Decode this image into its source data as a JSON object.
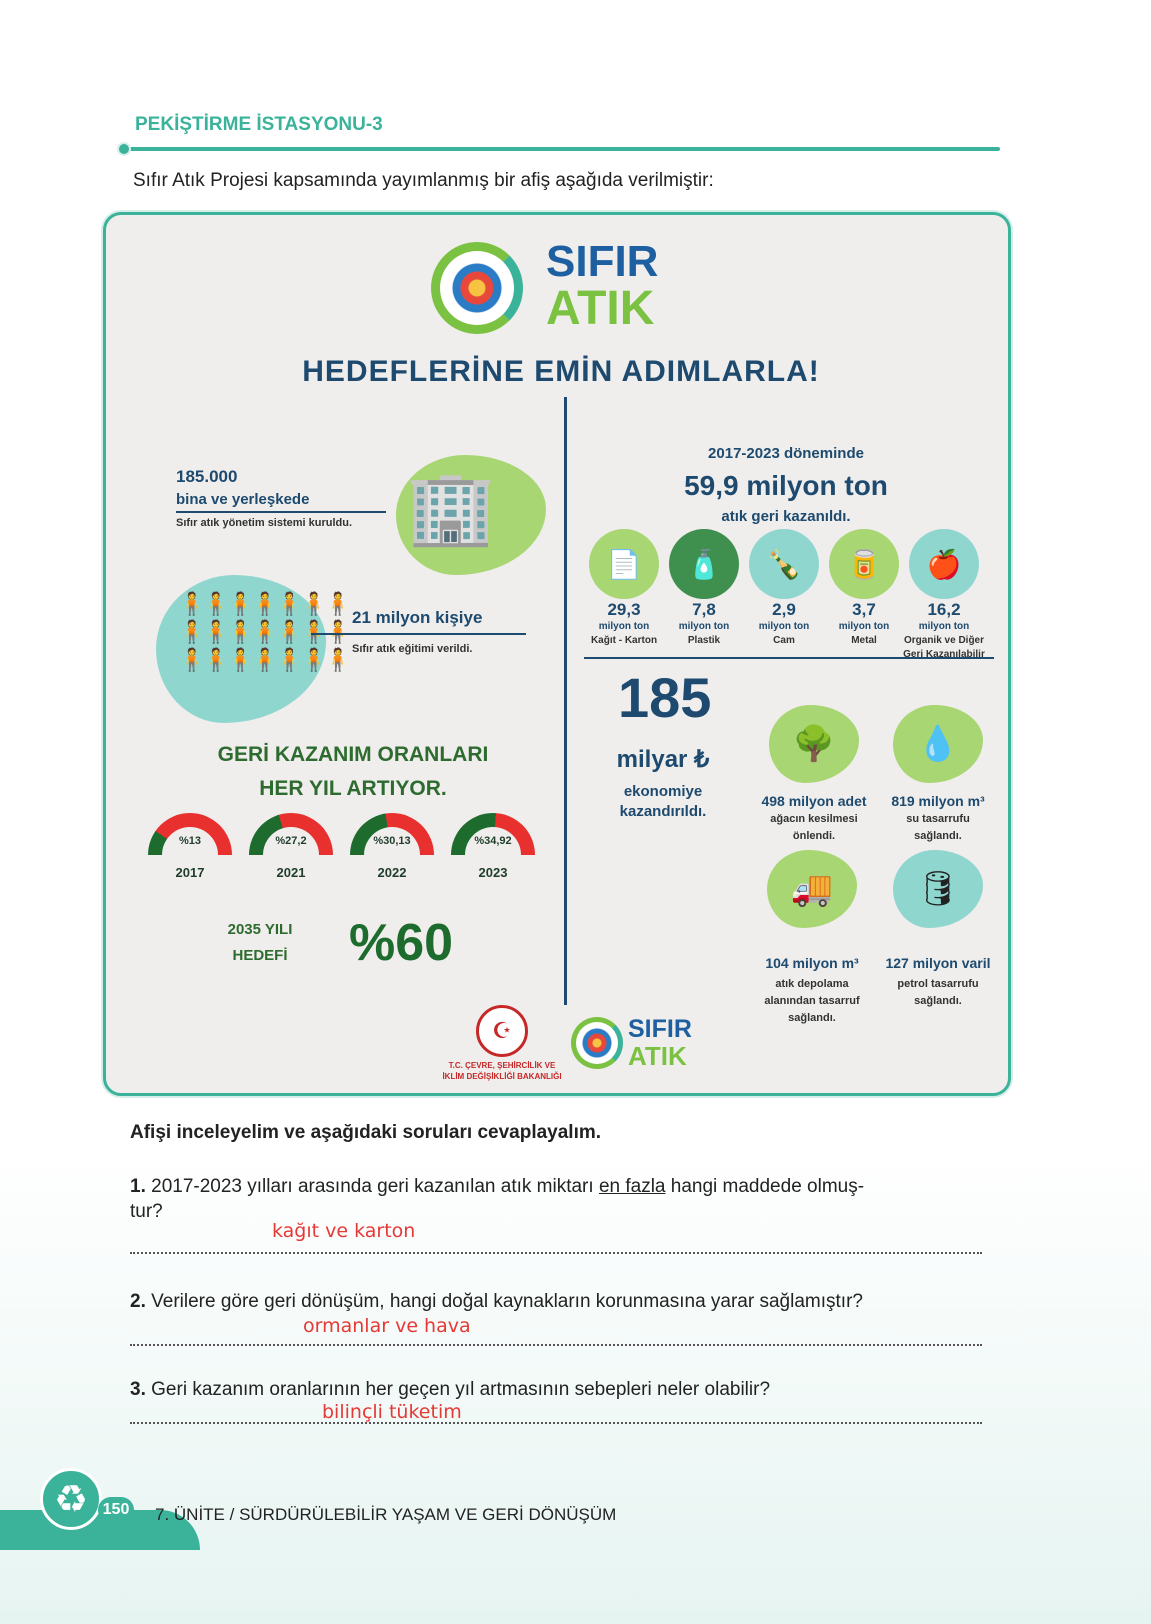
{
  "header": {
    "title": "PEKİŞTİRME İSTASYONU-3",
    "intro": "Sıfır Atık Projesi kapsamında yayımlanmış bir afiş aşağıda verilmiştir:"
  },
  "poster": {
    "logo": {
      "line1": "SIFIR",
      "line2": "ATIK"
    },
    "headline": "HEDEFLERİNE EMİN ADIMLARLA!",
    "buildings": {
      "value": "185.000",
      "label": "bina ve yerleşkede",
      "desc": "Sıfır atık yönetim sistemi kuruldu."
    },
    "people": {
      "value": "21 milyon kişiye",
      "desc": "Sıfır atık eğitimi verildi."
    },
    "rates": {
      "title1": "GERİ KAZANIM ORANLARI",
      "title2": "HER YIL ARTIYOR.",
      "items": [
        {
          "label": "%13",
          "year": "2017",
          "value": 13
        },
        {
          "label": "%27,2",
          "year": "2021",
          "value": 27.2
        },
        {
          "label": "%30,13",
          "year": "2022",
          "value": 30.13
        },
        {
          "label": "%34,92",
          "year": "2023",
          "value": 34.92
        }
      ],
      "target_label1": "2035 YILI",
      "target_label2": "HEDEFİ",
      "target_value": "%60"
    },
    "recovered": {
      "period": "2017-2023 döneminde",
      "total": "59,9 milyon ton",
      "desc": "atık geri kazanıldı.",
      "items": [
        {
          "value": "29,3",
          "unit": "milyon ton",
          "name": "Kağıt - Karton",
          "icon": "paper-recycle-icon",
          "color": "#a8d672"
        },
        {
          "value": "7,8",
          "unit": "milyon ton",
          "name": "Plastik",
          "icon": "plastic-bottle-icon",
          "color": "#3f8f4f"
        },
        {
          "value": "2,9",
          "unit": "milyon ton",
          "name": "Cam",
          "icon": "glass-bottle-icon",
          "color": "#8fd6cf"
        },
        {
          "value": "3,7",
          "unit": "milyon ton",
          "name": "Metal",
          "icon": "metal-bin-icon",
          "color": "#a8d672"
        },
        {
          "value": "16,2",
          "unit": "milyon ton",
          "name": "Organik ve Diğer",
          "name2": "Geri Kazanılabilir",
          "icon": "organic-waste-icon",
          "color": "#8fd6cf"
        }
      ]
    },
    "economy": {
      "value": "185",
      "unit": "milyar ₺",
      "desc1": "ekonomiye",
      "desc2": "kazandırıldı."
    },
    "savings": [
      {
        "value": "498 milyon adet",
        "l1": "ağacın kesilmesi",
        "l2": "önlendi.",
        "icon": "trees-icon"
      },
      {
        "value": "819 milyon m³",
        "l1": "su tasarrufu",
        "l2": "sağlandı.",
        "icon": "water-drops-icon"
      },
      {
        "value": "104 milyon m³",
        "l1": "atık depolama",
        "l2": "alanından tasarruf",
        "l3": "sağlandı.",
        "icon": "dump-truck-icon"
      },
      {
        "value": "127 milyon varil",
        "l1": "petrol tasarrufu",
        "l2": "sağlandı.",
        "icon": "oil-barrel-icon"
      }
    ],
    "ministry": {
      "line1": "T.C. ÇEVRE, ŞEHİRCİLİK VE",
      "line2": "İKLİM DEĞİŞİKLİĞİ BAKANLIĞI"
    }
  },
  "questions": {
    "intro": "Afişi inceleyelim ve aşağıdaki soruları cevaplayalım.",
    "items": [
      {
        "num": "1.",
        "text_a": "2017-2023 yılları arasında geri kazanılan atık miktarı ",
        "underlined": "en fazla",
        "text_b": " hangi maddede olmuş-",
        "text_c": "tur?",
        "answer": "kağıt ve karton"
      },
      {
        "num": "2.",
        "text_a": "Verilere göre geri dönüşüm, hangi doğal kaynakların korunmasına yarar sağlamıştır?",
        "answer": "ormanlar ve hava"
      },
      {
        "num": "3.",
        "text_a": "Geri kazanım oranlarının her geçen yıl artmasının sebepleri neler olabilir?",
        "answer": "bilinçli tüketim"
      }
    ]
  },
  "footer": {
    "page": "150",
    "unit": "7. ÜNİTE / SÜRDÜRÜLEBİLİR YAŞAM VE GERİ DÖNÜŞÜM"
  },
  "colors": {
    "accent": "#3bb39a",
    "navy": "#1d4a6e",
    "green": "#2d6b2f",
    "answer": "#e53935"
  }
}
